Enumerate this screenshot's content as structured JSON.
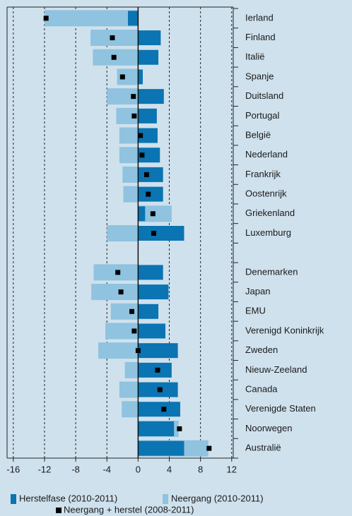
{
  "chart_data": {
    "type": "bar",
    "orientation": "horizontal",
    "categories": [
      "Ierland",
      "Finland",
      "Italië",
      "Spanje",
      "Duitsland",
      "Portugal",
      "België",
      "Nederland",
      "Frankrijk",
      "Oostenrijk",
      "Griekenland",
      "Luxemburg",
      null,
      "Denemarken",
      "Japan",
      "EMU",
      "Verenigd Koninkrijk",
      "Zweden",
      "Nieuw-Zeeland",
      "Canada",
      "Verenigde Staten",
      "Noorwegen",
      "Australië"
    ],
    "series": [
      {
        "name": "Neergang (2010-2011)",
        "color": "#8fc3df",
        "style": "bar",
        "values": [
          -12.0,
          -6.1,
          -5.8,
          -2.7,
          -4.0,
          -2.8,
          -2.4,
          -2.4,
          -2.0,
          -1.9,
          4.3,
          -4.0,
          null,
          -5.7,
          -6.0,
          -3.5,
          -4.2,
          -5.1,
          -1.7,
          -2.4,
          -2.1,
          5.2,
          9.0
        ]
      },
      {
        "name": "Herstelfase (2010-2011)",
        "color": "#0b74b2",
        "style": "bar",
        "values": [
          -1.3,
          2.9,
          2.6,
          0.6,
          3.3,
          2.4,
          2.5,
          2.8,
          3.2,
          3.2,
          0.9,
          5.9,
          null,
          3.2,
          3.9,
          2.6,
          3.5,
          5.1,
          4.3,
          5.1,
          5.4,
          4.6,
          5.9
        ]
      },
      {
        "name": "Neergang + herstel (2008-2011)",
        "color": "#000000",
        "style": "marker",
        "values": [
          -11.8,
          -3.3,
          -3.1,
          -2.0,
          -0.6,
          -0.5,
          0.3,
          0.5,
          1.1,
          1.3,
          1.9,
          2.0,
          null,
          -2.6,
          -2.2,
          -0.8,
          -0.5,
          0.0,
          2.5,
          2.8,
          3.3,
          5.3,
          9.1
        ]
      }
    ],
    "xlim": [
      -16.8,
      12.2
    ],
    "xticks": [
      -16,
      -12,
      -8,
      -4,
      0,
      4,
      8,
      12
    ],
    "grid": true
  }
}
